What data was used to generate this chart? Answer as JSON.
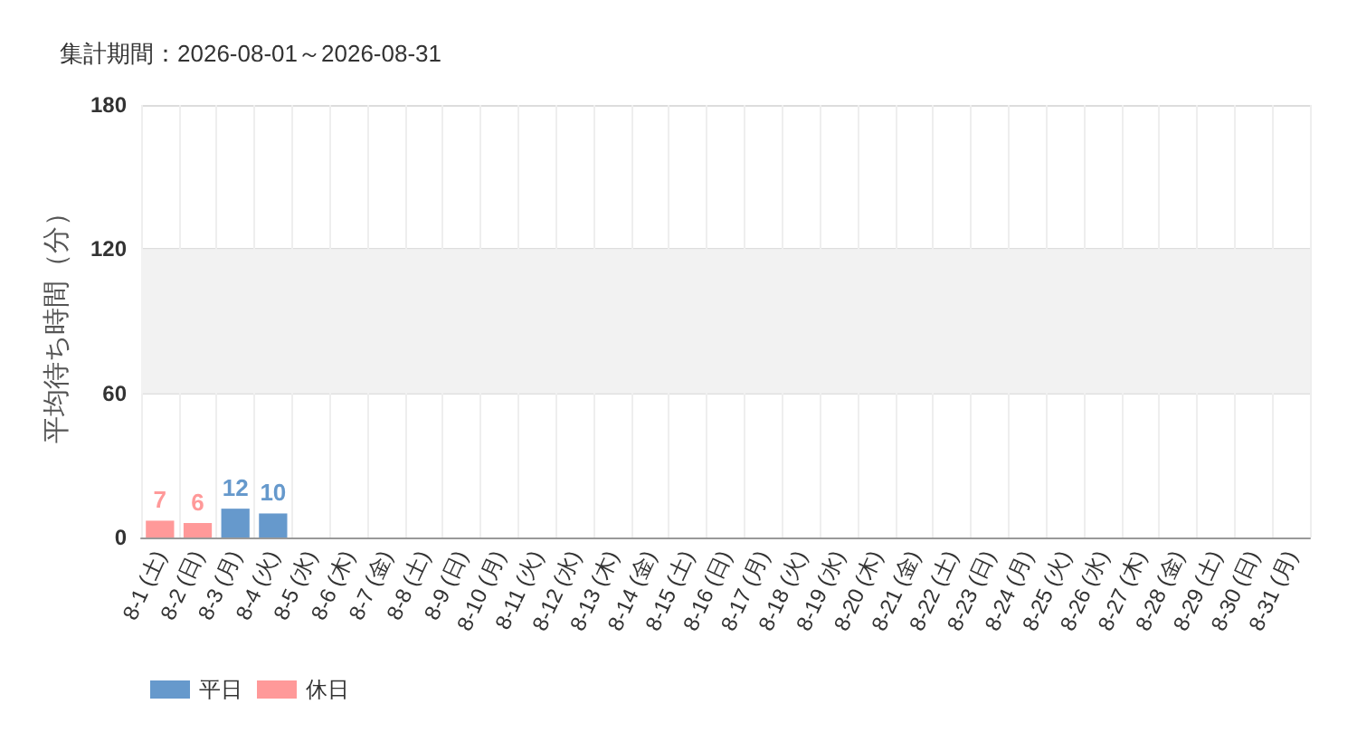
{
  "chart_data": {
    "type": "bar",
    "title": "集計期間：2026-08-01～2026-08-31",
    "ylabel": "平均待ち時間（分）",
    "categories": [
      "8-1 (土)",
      "8-2 (日)",
      "8-3 (月)",
      "8-4 (火)",
      "8-5 (水)",
      "8-6 (木)",
      "8-7 (金)",
      "8-8 (土)",
      "8-9 (日)",
      "8-10 (月)",
      "8-11 (火)",
      "8-12 (水)",
      "8-13 (木)",
      "8-14 (金)",
      "8-15 (土)",
      "8-16 (日)",
      "8-17 (月)",
      "8-18 (火)",
      "8-19 (水)",
      "8-20 (木)",
      "8-21 (金)",
      "8-22 (土)",
      "8-23 (日)",
      "8-24 (月)",
      "8-25 (火)",
      "8-26 (水)",
      "8-27 (木)",
      "8-28 (金)",
      "8-29 (土)",
      "8-30 (日)",
      "8-31 (月)"
    ],
    "series": [
      {
        "name": "平日",
        "color": "#6699cc",
        "values": [
          null,
          null,
          12,
          10,
          null,
          null,
          null,
          null,
          null,
          null,
          null,
          null,
          null,
          null,
          null,
          null,
          null,
          null,
          null,
          null,
          null,
          null,
          null,
          null,
          null,
          null,
          null,
          null,
          null,
          null,
          null
        ]
      },
      {
        "name": "休日",
        "color": "#ff9999",
        "values": [
          7,
          6,
          null,
          null,
          null,
          null,
          null,
          null,
          null,
          null,
          null,
          null,
          null,
          null,
          null,
          null,
          null,
          null,
          null,
          null,
          null,
          null,
          null,
          null,
          null,
          null,
          null,
          null,
          null,
          null,
          null
        ]
      }
    ],
    "stacked": true,
    "ylim": [
      0,
      180
    ],
    "yticks": [
      0,
      60,
      120,
      180
    ],
    "bands": [
      {
        "axis": "y",
        "from": 60,
        "to": 120,
        "color": "#f2f2f2"
      }
    ],
    "grid": true,
    "legend": "bottom left",
    "data_labels": true
  }
}
